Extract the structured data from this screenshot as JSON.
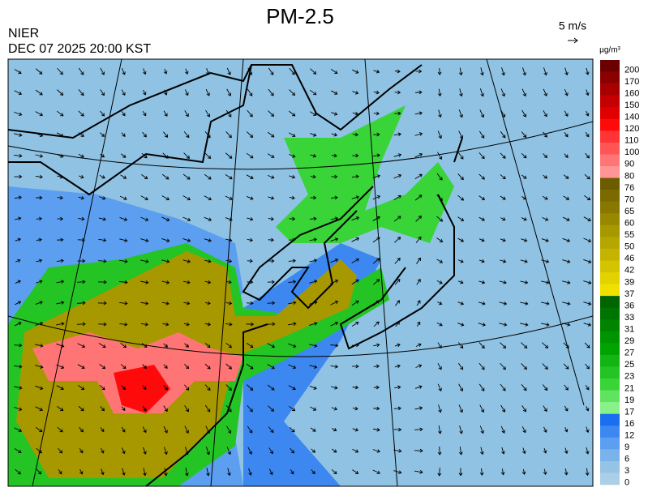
{
  "header": {
    "title": "PM-2.5",
    "agency": "NIER",
    "datetime": "DEC 07 2025 20:00 KST",
    "wind_scale": "5 m/s"
  },
  "colorbar": {
    "unit": "µg/m³",
    "labels": [
      "200",
      "170",
      "160",
      "150",
      "140",
      "120",
      "110",
      "100",
      "90",
      "80",
      "76",
      "70",
      "65",
      "60",
      "55",
      "50",
      "46",
      "42",
      "39",
      "37",
      "36",
      "33",
      "31",
      "29",
      "27",
      "25",
      "23",
      "21",
      "19",
      "17",
      "16",
      "12",
      "9",
      "6",
      "3",
      "0"
    ],
    "colors": [
      "#6b0000",
      "#8b0000",
      "#a80000",
      "#c40000",
      "#e00000",
      "#ff0a0a",
      "#ff3535",
      "#ff5555",
      "#ff7575",
      "#ff9595",
      "#6b5c00",
      "#7a6a00",
      "#887800",
      "#988800",
      "#a89800",
      "#b6a600",
      "#c4b400",
      "#d4c400",
      "#e2d200",
      "#f0e000",
      "#006400",
      "#007400",
      "#008400",
      "#009400",
      "#00a400",
      "#14b414",
      "#24c424",
      "#38d438",
      "#60e460",
      "#88f288",
      "#1a6ff0",
      "#3c88f0",
      "#5c9ff0",
      "#7ab2ea",
      "#94c3e4",
      "#aacfe6"
    ]
  }
}
